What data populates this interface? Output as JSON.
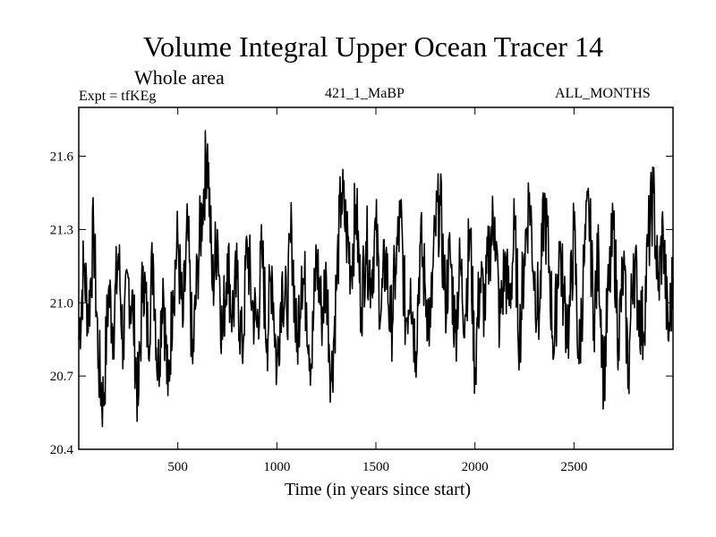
{
  "chart_data": {
    "type": "line",
    "title": "Volume Integral Upper Ocean Tracer 14",
    "subtitle": "Whole area",
    "experiment": "Expt = tfKEg",
    "run_label": "421_1_MaBP",
    "months_label": "ALL_MONTHS",
    "xlabel": "Time (in years since start)",
    "ylabel": "",
    "xlim": [
      0,
      3000
    ],
    "ylim": [
      20.4,
      21.8
    ],
    "x_ticks": [
      500,
      1000,
      1500,
      2000,
      2500
    ],
    "x_tick_labels": [
      "500",
      "1000",
      "1500",
      "2000",
      "2500"
    ],
    "y_ticks": [
      20.4,
      20.7,
      21.0,
      21.3,
      21.6
    ],
    "y_tick_labels": [
      "20.4",
      "20.7",
      "21.0",
      "21.3",
      "21.6"
    ],
    "series": [
      {
        "color": "#000000",
        "x": [
          0,
          25,
          50,
          75,
          100,
          125,
          150,
          175,
          200,
          225,
          250,
          275,
          300,
          325,
          350,
          375,
          400,
          425,
          450,
          475,
          500,
          525,
          550,
          575,
          600,
          625,
          650,
          675,
          700,
          725,
          750,
          775,
          800,
          825,
          850,
          875,
          900,
          925,
          950,
          975,
          1000,
          1025,
          1050,
          1075,
          1100,
          1125,
          1150,
          1175,
          1200,
          1225,
          1250,
          1275,
          1300,
          1325,
          1350,
          1375,
          1400,
          1425,
          1450,
          1475,
          1500,
          1525,
          1550,
          1575,
          1600,
          1625,
          1650,
          1675,
          1700,
          1725,
          1750,
          1775,
          1800,
          1825,
          1850,
          1875,
          1900,
          1925,
          1950,
          1975,
          2000,
          2025,
          2050,
          2075,
          2100,
          2125,
          2150,
          2175,
          2200,
          2225,
          2250,
          2275,
          2300,
          2325,
          2350,
          2375,
          2400,
          2425,
          2450,
          2475,
          2500,
          2525,
          2550,
          2575,
          2600,
          2625,
          2650,
          2675,
          2700,
          2725,
          2750,
          2775,
          2800,
          2825,
          2850,
          2875,
          2900,
          2925,
          2950,
          2975,
          3000
        ],
        "y": [
          20.85,
          21.15,
          20.95,
          21.3,
          20.75,
          20.58,
          21.05,
          20.9,
          21.2,
          20.82,
          21.1,
          20.95,
          20.58,
          21.15,
          20.85,
          21.2,
          20.7,
          21.1,
          20.62,
          21.05,
          21.25,
          20.9,
          21.3,
          20.75,
          21.15,
          21.4,
          21.65,
          21.05,
          21.3,
          20.85,
          21.2,
          20.95,
          21.1,
          20.78,
          21.25,
          21.0,
          20.9,
          21.2,
          20.85,
          21.15,
          20.72,
          21.1,
          20.95,
          21.3,
          20.8,
          21.15,
          21.0,
          20.75,
          21.2,
          20.95,
          21.1,
          20.68,
          21.05,
          21.45,
          21.3,
          21.15,
          21.4,
          20.98,
          21.25,
          21.1,
          21.3,
          20.95,
          21.2,
          20.88,
          21.15,
          21.35,
          20.92,
          21.1,
          20.8,
          21.25,
          21.05,
          20.9,
          21.3,
          21.4,
          21.0,
          21.2,
          20.88,
          21.15,
          20.95,
          21.3,
          20.72,
          21.1,
          20.98,
          21.25,
          21.35,
          20.9,
          21.15,
          21.0,
          21.3,
          20.85,
          21.2,
          21.45,
          21.1,
          20.95,
          21.4,
          21.15,
          20.8,
          21.25,
          21.0,
          20.9,
          21.3,
          20.75,
          21.15,
          21.4,
          20.95,
          21.2,
          20.68,
          21.05,
          21.3,
          20.85,
          21.15,
          20.7,
          21.2,
          21.0,
          20.88,
          21.25,
          21.45,
          21.05,
          21.3,
          20.85,
          21.1
        ]
      }
    ],
    "grid": false,
    "legend": "none"
  }
}
